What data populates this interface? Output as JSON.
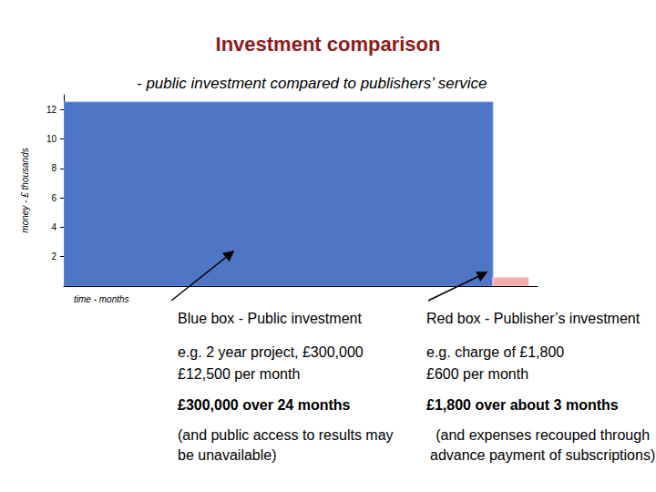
{
  "chart_data": {
    "type": "box",
    "title": "Investment comparison",
    "subtitle": "- public investment compared to publishers’ service",
    "xlabel": "time - months",
    "ylabel": "money - £ thousands",
    "xlim": [
      0,
      26.5
    ],
    "ylim": [
      0,
      13
    ],
    "yticks": [
      2,
      4,
      6,
      8,
      10,
      12
    ],
    "tick_labels": "y",
    "grid": false,
    "boxes": [
      {
        "x": [
          0,
          24
        ],
        "value": 12.5,
        "color": "#4f76c4"
      },
      {
        "x": [
          24,
          26
        ],
        "value": 0.6,
        "color": "#f2aaaa"
      }
    ],
    "annotations": [
      [
        "Blue box - Public investment",
        "Red box - Publisher’s investment"
      ],
      [
        "e.g. 2 year project, £300,000",
        "e.g.  charge of £1,800"
      ],
      [
        "£12,500 per month",
        "£600 per month"
      ],
      [
        "£300,000 over 24 months",
        "£1,800 over about 3 months"
      ],
      [
        "(and public access to results may\nbe unavailable)",
        "(and expenses recouped through\nadvance payment of subscriptions)"
      ]
    ]
  }
}
